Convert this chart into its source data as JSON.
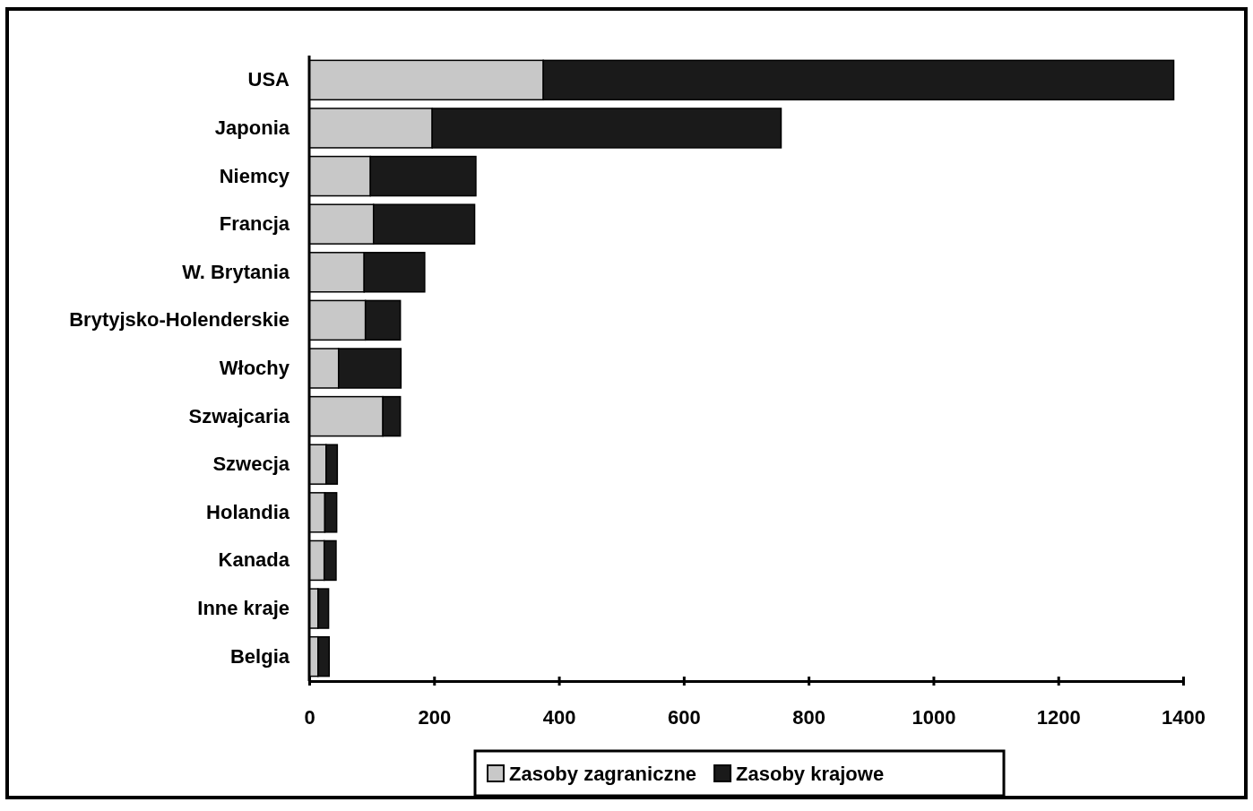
{
  "chart_data": {
    "type": "bar",
    "orientation": "horizontal",
    "stacked": true,
    "categories": [
      "USA",
      "Japonia",
      "Niemcy",
      "Francja",
      "W. Brytania",
      "Brytyjsko-Holenderskie",
      "Włochy",
      "Szwajcaria",
      "Szwecja",
      "Holandia",
      "Kanada",
      "Inne kraje",
      "Belgia"
    ],
    "series": [
      {
        "name": "Zasoby zagraniczne",
        "color": "#c8c8c8",
        "values": [
          375,
          197,
          98,
          103,
          88,
          90,
          47,
          118,
          27,
          25,
          24,
          14,
          14
        ]
      },
      {
        "name": "Zasoby krajowe",
        "color": "#1a1a1a",
        "values": [
          1010,
          559,
          169,
          162,
          97,
          56,
          100,
          28,
          18,
          19,
          19,
          17,
          18
        ]
      }
    ],
    "xlim": [
      0,
      1400
    ],
    "xticks": [
      0,
      200,
      400,
      600,
      800,
      1000,
      1200,
      1400
    ],
    "grid": false,
    "legend": "bottom"
  }
}
